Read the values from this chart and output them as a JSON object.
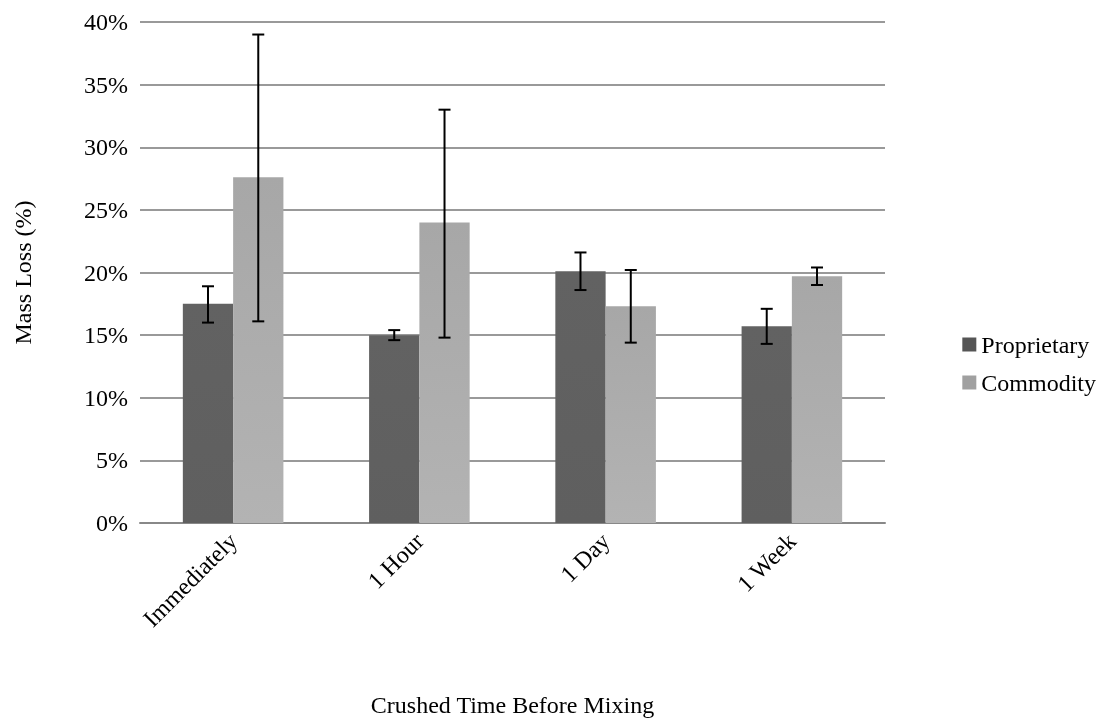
{
  "chart_data": {
    "type": "bar",
    "xlabel": "Crushed Time Before Mixing",
    "ylabel": "Mass Loss (%)",
    "categories": [
      "Immediately",
      "1 Hour",
      "1 Day",
      "1 Week"
    ],
    "series": [
      {
        "name": "Proprietary",
        "color": "#555555",
        "values": [
          17.5,
          15.0,
          20.1,
          15.7
        ],
        "errors": [
          [
            16.0,
            18.9
          ],
          [
            14.6,
            15.4
          ],
          [
            18.6,
            21.6
          ],
          [
            14.3,
            17.1
          ]
        ]
      },
      {
        "name": "Commodity",
        "color": "#a0a0a0",
        "values": [
          27.6,
          24.0,
          17.3,
          19.7
        ],
        "errors": [
          [
            16.1,
            39
          ],
          [
            14.8,
            33
          ],
          [
            14.4,
            20.2
          ],
          [
            19.0,
            20.4
          ]
        ]
      }
    ],
    "ylim": [
      0,
      40
    ],
    "yticks": [
      {
        "value": 0,
        "label": "0%"
      },
      {
        "value": 5,
        "label": "5%"
      },
      {
        "value": 10,
        "label": "10%"
      },
      {
        "value": 15,
        "label": "15%"
      },
      {
        "value": 20,
        "label": "20%"
      },
      {
        "value": 25,
        "label": "25%"
      },
      {
        "value": 30,
        "label": "30%"
      },
      {
        "value": 35,
        "label": "35%"
      },
      {
        "value": 40,
        "label": "40%"
      }
    ],
    "grid": "y",
    "legend": "right"
  }
}
